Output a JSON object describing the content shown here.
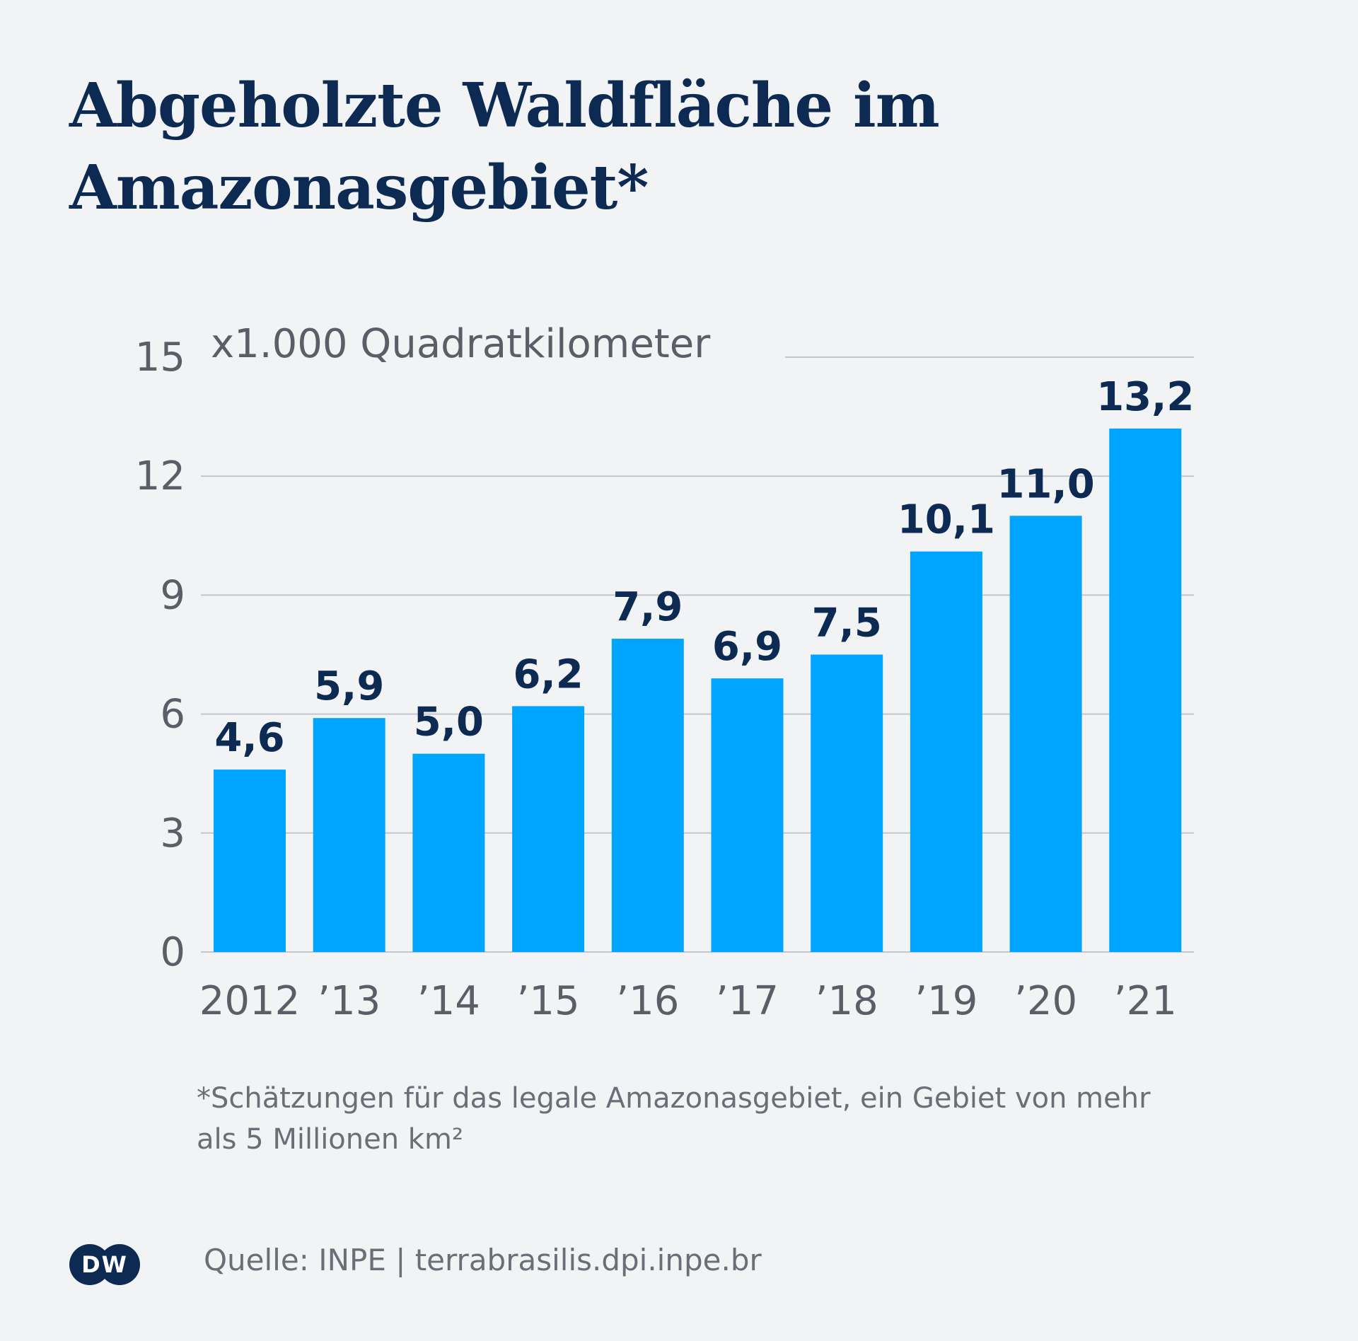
{
  "title": "Abgeholzte Waldfläche im Amazonasgebiet*",
  "footnote": "*Schätzungen für das legale Amazonasgebiet, ein Gebiet von mehr als 5 Millionen km²",
  "source": "Quelle: INPE | terrabrasilis.dpi.inpe.br",
  "logo": {
    "text": "DW",
    "icon": "dw-logo-icon"
  },
  "colors": {
    "background": "#f2f3f5",
    "bar": "#00a5ff",
    "title": "#0c2a52",
    "value_label": "#0c2a52",
    "axis_text": "#5a5f67",
    "grid": "#c3c6cc"
  },
  "chart_data": {
    "type": "bar",
    "categories": [
      "2012",
      "’13",
      "’14",
      "’15",
      "’16",
      "’17",
      "’18",
      "’19",
      "’20",
      "’21"
    ],
    "values": [
      4.6,
      5.9,
      5.0,
      6.2,
      7.9,
      6.9,
      7.5,
      10.1,
      11.0,
      13.2
    ],
    "value_labels": [
      "4,6",
      "5,9",
      "5,0",
      "6,2",
      "7,9",
      "6,9",
      "7,5",
      "10,1",
      "11,0",
      "13,2"
    ],
    "y_unit_label": "x1.000 Quadratkilometer",
    "yticks": [
      0,
      3,
      6,
      9,
      12,
      15
    ],
    "ylim": [
      0,
      15
    ],
    "grid": true,
    "legend": "none"
  }
}
